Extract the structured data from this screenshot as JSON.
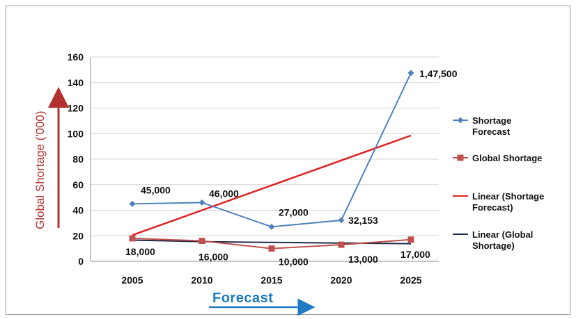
{
  "chart_data": {
    "type": "line",
    "title": "",
    "xlabel": "Forecast",
    "ylabel": "Global Shortage ('000)",
    "categories": [
      "2005",
      "2010",
      "2015",
      "2020",
      "2025"
    ],
    "ylim": [
      0,
      160
    ],
    "yticks": [
      0,
      20,
      40,
      60,
      80,
      100,
      120,
      140,
      160
    ],
    "grid": "horizontal",
    "legend_position": "right",
    "series": [
      {
        "name": "Shortage Forecast",
        "color": "#4f81bd",
        "marker": "diamond",
        "values": [
          45,
          46,
          27,
          32.153,
          147.5
        ],
        "data_labels": [
          "45,000",
          "46,000",
          "27,000",
          "32,153",
          "1,47,500"
        ]
      },
      {
        "name": "Global Shortage",
        "color": "#c0504d",
        "marker": "square",
        "values": [
          18,
          16,
          10,
          13,
          17
        ],
        "data_labels": [
          "18,000",
          "16,000",
          "10,000",
          "13,000",
          "17,000"
        ]
      }
    ],
    "trendlines": [
      {
        "name": "Linear (Shortage Forecast)",
        "color": "#e02020",
        "values": [
          20.5,
          40,
          59.5,
          79,
          98.5
        ]
      },
      {
        "name": "Linear (Global Shortage)",
        "color": "#1f2a4a",
        "values": [
          16.6,
          15.4,
          14.8,
          14.3,
          13.8
        ]
      }
    ],
    "legend": [
      {
        "label_lines": [
          "Shortage",
          "Forecast"
        ],
        "color": "#4f81bd",
        "marker": "diamond"
      },
      {
        "label_lines": [
          "Global Shortage"
        ],
        "color": "#c0504d",
        "marker": "square"
      },
      {
        "label_lines": [
          "Linear (Shortage",
          "Forecast)"
        ],
        "color": "#e02020",
        "marker": "none"
      },
      {
        "label_lines": [
          "Linear (Global",
          "Shortage)"
        ],
        "color": "#1f2a4a",
        "marker": "none"
      }
    ]
  }
}
